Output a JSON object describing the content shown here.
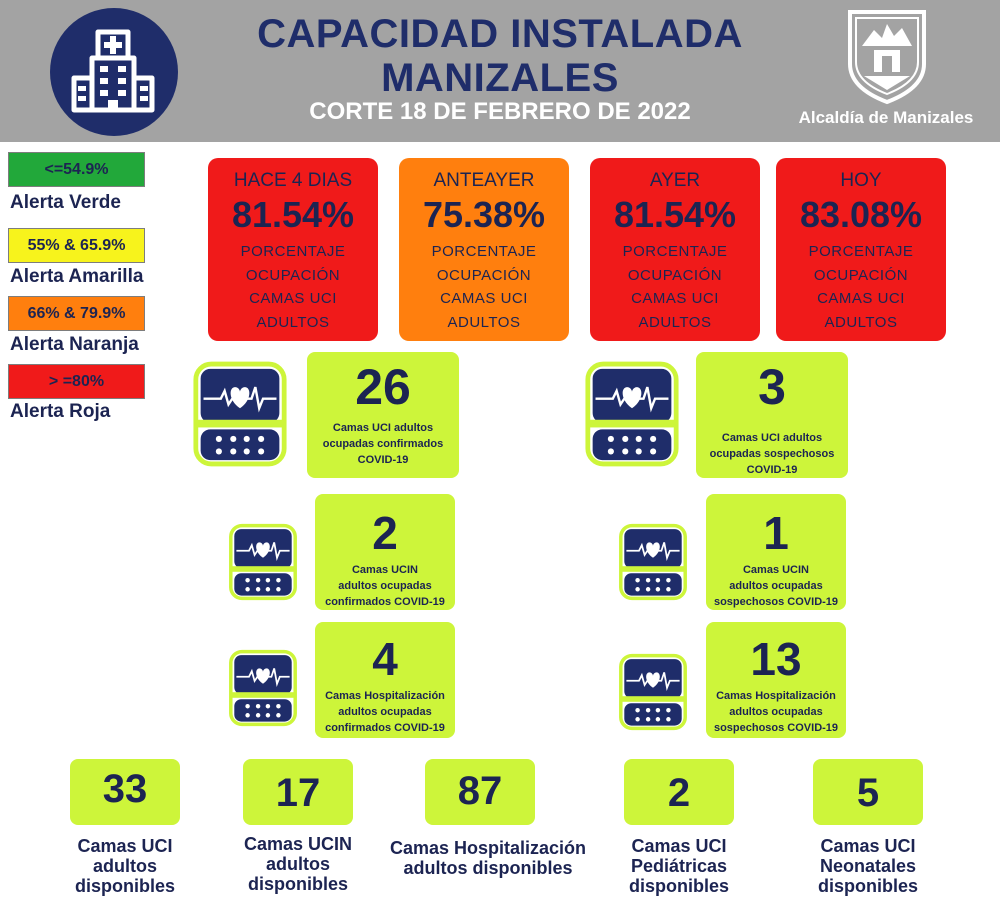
{
  "header": {
    "title_line1": "CAPACIDAD INSTALADA",
    "title_line2": "MANIZALES",
    "subtitle": "CORTE 18 DE FEBRERO DE 2022",
    "alcaldia": "Alcaldía de Manizales"
  },
  "legend": [
    {
      "range": "<=54.9%",
      "label": "Alerta Verde",
      "color": "#22a83a"
    },
    {
      "range": "55% & 65.9%",
      "label": "Alerta Amarilla",
      "color": "#f7f31c"
    },
    {
      "range": "66% & 79.9%",
      "label": "Alerta Naranja",
      "color": "#ff7f0e"
    },
    {
      "range": "> =80%",
      "label": "Alerta Roja",
      "color": "#f01a1a"
    }
  ],
  "occupancy": [
    {
      "period": "HACE 4 DIAS",
      "value": "81.54%",
      "desc_lines": [
        "PORCENTAJE",
        "OCUPACIÓN",
        "CAMAS UCI",
        "ADULTOS"
      ],
      "color": "#f01a1a"
    },
    {
      "period": "ANTEAYER",
      "value": "75.38%",
      "desc_lines": [
        "PORCENTAJE",
        "OCUPACIÓN",
        "CAMAS UCI",
        "ADULTOS"
      ],
      "color": "#ff7f0e"
    },
    {
      "period": "AYER",
      "value": "81.54%",
      "desc_lines": [
        "PORCENTAJE",
        "OCUPACIÓN",
        "CAMAS UCI",
        "ADULTOS"
      ],
      "color": "#f01a1a"
    },
    {
      "period": "HOY",
      "value": "83.08%",
      "desc_lines": [
        "PORCENTAJE",
        "OCUPACIÓN",
        "CAMAS UCI",
        "ADULTOS"
      ],
      "color": "#f01a1a"
    }
  ],
  "occupied": {
    "uci_confirmed": {
      "value": "26",
      "lines": [
        "Camas UCI adultos",
        "ocupadas confirmados",
        "COVID-19"
      ]
    },
    "uci_suspected": {
      "value": "3",
      "lines": [
        "Camas UCI adultos",
        "ocupadas sospechosos",
        "COVID-19"
      ]
    },
    "ucin_confirmed": {
      "value": "2",
      "lines": [
        "Camas  UCIN",
        "adultos ocupadas",
        "confirmados COVID-19"
      ]
    },
    "ucin_suspected": {
      "value": "1",
      "lines": [
        "Camas  UCIN",
        "adultos ocupadas",
        "sospechosos COVID-19"
      ]
    },
    "hosp_confirmed": {
      "value": "4",
      "lines": [
        "Camas  Hospitalización",
        "adultos ocupadas",
        "confirmados COVID-19"
      ]
    },
    "hosp_suspected": {
      "value": "13",
      "lines": [
        "Camas  Hospitalización",
        "adultos ocupadas",
        "sospechosos COVID-19"
      ]
    }
  },
  "available": [
    {
      "value": "33",
      "lines": [
        "Camas UCI",
        "adultos",
        "disponibles"
      ]
    },
    {
      "value": "17",
      "lines": [
        "Camas UCIN",
        "adultos",
        "disponibles"
      ]
    },
    {
      "value": "87",
      "lines": [
        "Camas  Hospitalización",
        "adultos disponibles"
      ]
    },
    {
      "value": "2",
      "lines": [
        "Camas  UCI",
        "Pediátricas",
        "disponibles"
      ]
    },
    {
      "value": "5",
      "lines": [
        "Camas  UCI",
        "Neonatales",
        "disponibles"
      ]
    }
  ],
  "icons": {
    "hospital": "hospital-building-icon",
    "monitor": "heart-monitor-icon",
    "crest": "manizales-crest-icon"
  }
}
